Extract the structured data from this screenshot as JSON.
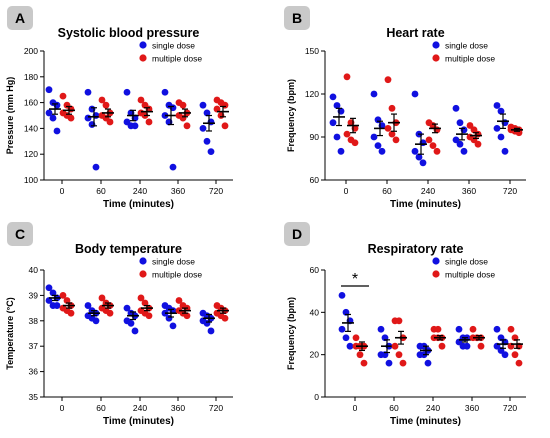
{
  "colors": {
    "single": "#1010e0",
    "multiple": "#e01818",
    "badge": "#c9c9c9",
    "axis": "#000000"
  },
  "chart_data": [
    {
      "panel": "A",
      "type": "scatter",
      "title": "Systolic blood pressure",
      "xlabel": "Time (minutes)",
      "ylabel": "Pressure (mm Hg)",
      "categories": [
        "0",
        "60",
        "240",
        "360",
        "720"
      ],
      "ylim": [
        100,
        200
      ],
      "yticks": [
        100,
        120,
        140,
        160,
        180,
        200
      ],
      "significance": [],
      "series": [
        {
          "name": "single dose",
          "points": [
            [
              170,
              160,
              158,
              152,
              148,
              138
            ],
            [
              168,
              155,
              150,
              148,
              143,
              110
            ],
            [
              168,
              152,
              148,
              145,
              142,
              142
            ],
            [
              168,
              158,
              156,
              150,
              145,
              110
            ],
            [
              158,
              152,
              145,
              140,
              130,
              122
            ]
          ],
          "mean": [
            155,
            149,
            150,
            150,
            144
          ],
          "sem": [
            4,
            7,
            4,
            7,
            6
          ]
        },
        {
          "name": "multiple dose",
          "points": [
            [
              165,
              158,
              155,
              152,
              150,
              148
            ],
            [
              162,
              158,
              152,
              150,
              148,
              145
            ],
            [
              162,
              158,
              155,
              152,
              150,
              145
            ],
            [
              160,
              158,
              152,
              150,
              148,
              142
            ],
            [
              162,
              160,
              158,
              155,
              150,
              142
            ]
          ],
          "mean": [
            154,
            152,
            153,
            152,
            153
          ],
          "sem": [
            3,
            3,
            3,
            3,
            4
          ]
        }
      ]
    },
    {
      "panel": "B",
      "type": "scatter",
      "title": "Heart rate",
      "xlabel": "Time (minutes)",
      "ylabel": "Frequency (bpm)",
      "categories": [
        "0",
        "60",
        "240",
        "360",
        "720"
      ],
      "ylim": [
        60,
        150
      ],
      "yticks": [
        60,
        90,
        120,
        150
      ],
      "significance": [],
      "series": [
        {
          "name": "single dose",
          "points": [
            [
              118,
              112,
              108,
              100,
              90,
              80
            ],
            [
              120,
              102,
              98,
              90,
              84,
              80
            ],
            [
              120,
              92,
              86,
              80,
              76,
              72
            ],
            [
              110,
              100,
              95,
              88,
              85,
              80
            ],
            [
              112,
              108,
              100,
              96,
              90,
              80
            ]
          ],
          "mean": [
            104,
            96,
            85,
            92,
            101
          ],
          "sem": [
            6,
            5,
            7,
            4,
            5
          ]
        },
        {
          "name": "multiple dose",
          "points": [
            [
              132,
              100,
              96,
              92,
              88,
              86
            ],
            [
              130,
              110,
              100,
              96,
              92,
              88
            ],
            [
              100,
              98,
              95,
              88,
              84,
              80
            ],
            [
              98,
              95,
              92,
              90,
              88,
              85
            ],
            [
              97,
              96,
              95,
              95,
              94,
              93
            ]
          ],
          "mean": [
            98,
            100,
            96,
            91,
            95
          ],
          "sem": [
            5,
            6,
            3,
            2,
            1
          ]
        }
      ]
    },
    {
      "panel": "C",
      "type": "scatter",
      "title": "Body temperature",
      "xlabel": "Time (minutes)",
      "ylabel": "Temperature (°C)",
      "categories": [
        "0",
        "60",
        "240",
        "360",
        "720"
      ],
      "ylim": [
        35,
        40
      ],
      "yticks": [
        35,
        36,
        37,
        38,
        39,
        40
      ],
      "significance": [],
      "series": [
        {
          "name": "single dose",
          "points": [
            [
              39.3,
              39.1,
              38.9,
              38.8,
              38.6,
              38.6
            ],
            [
              38.6,
              38.4,
              38.3,
              38.2,
              38.1,
              38.0
            ],
            [
              38.5,
              38.3,
              38.2,
              38.0,
              37.9,
              37.6
            ],
            [
              38.6,
              38.5,
              38.4,
              38.3,
              38.1,
              37.8
            ],
            [
              38.3,
              38.2,
              38.1,
              38.0,
              37.9,
              37.6
            ]
          ],
          "mean": [
            38.9,
            38.3,
            38.2,
            38.3,
            38.1
          ],
          "sem": [
            0.1,
            0.1,
            0.15,
            0.15,
            0.15
          ]
        },
        {
          "name": "multiple dose",
          "points": [
            [
              39.0,
              38.8,
              38.6,
              38.5,
              38.4,
              38.3
            ],
            [
              38.9,
              38.7,
              38.6,
              38.5,
              38.4,
              38.3
            ],
            [
              38.9,
              38.7,
              38.5,
              38.4,
              38.3,
              38.2
            ],
            [
              38.8,
              38.6,
              38.5,
              38.4,
              38.3,
              38.2
            ],
            [
              38.6,
              38.5,
              38.4,
              38.3,
              38.2,
              38.1
            ]
          ],
          "mean": [
            38.6,
            38.6,
            38.5,
            38.4,
            38.4
          ],
          "sem": [
            0.1,
            0.1,
            0.1,
            0.1,
            0.1
          ]
        }
      ]
    },
    {
      "panel": "D",
      "type": "scatter",
      "title": "Respiratory rate",
      "xlabel": "Time (minutes)",
      "ylabel": "Frequency (bpm)",
      "categories": [
        "0",
        "60",
        "240",
        "360",
        "720"
      ],
      "ylim": [
        0,
        60
      ],
      "yticks": [
        0,
        20,
        40,
        60
      ],
      "significance": [
        {
          "category": "0",
          "label": "*"
        }
      ],
      "series": [
        {
          "name": "single dose",
          "points": [
            [
              48,
              40,
              36,
              32,
              28,
              24
            ],
            [
              32,
              28,
              24,
              20,
              20,
              16
            ],
            [
              24,
              24,
              22,
              20,
              20,
              16
            ],
            [
              32,
              28,
              28,
              26,
              24,
              24
            ],
            [
              32,
              28,
              26,
              24,
              22,
              20
            ]
          ],
          "mean": [
            35,
            24,
            22,
            27,
            25
          ],
          "sem": [
            4,
            3,
            2,
            1,
            2
          ]
        },
        {
          "name": "multiple dose",
          "points": [
            [
              28,
              24,
              24,
              24,
              20,
              16
            ],
            [
              36,
              36,
              28,
              24,
              20,
              16
            ],
            [
              32,
              32,
              28,
              28,
              28,
              24
            ],
            [
              32,
              28,
              28,
              28,
              28,
              24
            ],
            [
              32,
              28,
              24,
              24,
              20,
              16
            ]
          ],
          "mean": [
            24,
            28,
            28,
            28,
            25
          ],
          "sem": [
            2,
            3,
            1,
            1,
            2
          ]
        }
      ]
    }
  ]
}
